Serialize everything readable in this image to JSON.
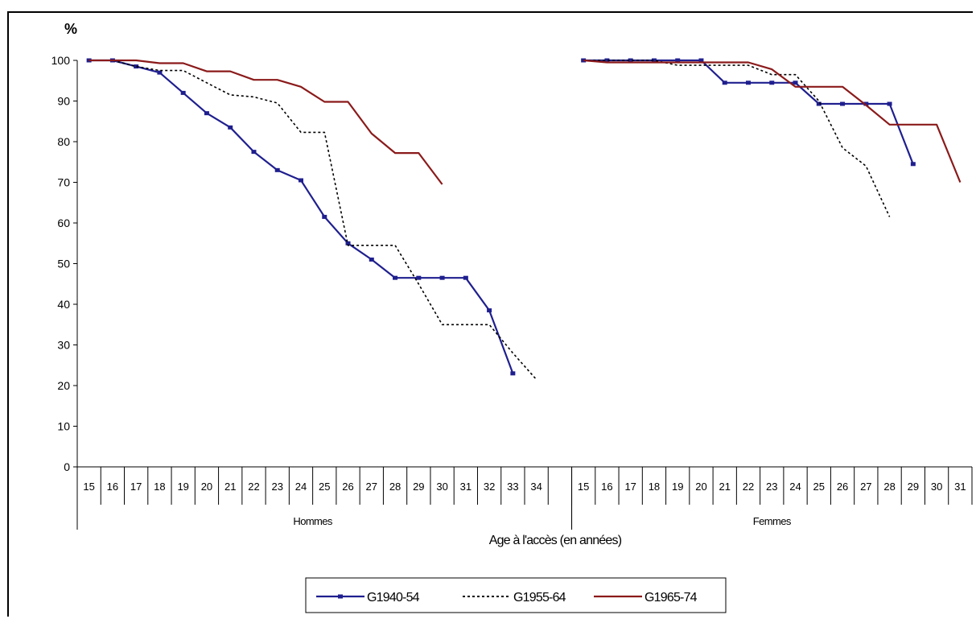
{
  "chart_data": {
    "type": "line",
    "ylabel": "%",
    "xlabel": "Age à l'accès (en années)",
    "ylim": [
      0,
      100
    ],
    "yticks": [
      0,
      10,
      20,
      30,
      40,
      50,
      60,
      70,
      80,
      90,
      100
    ],
    "legend_position": "bottom",
    "groups": [
      {
        "label": "Hommes",
        "categories": [
          "15",
          "16",
          "17",
          "18",
          "19",
          "20",
          "21",
          "22",
          "23",
          "24",
          "25",
          "26",
          "27",
          "28",
          "29",
          "30",
          "31",
          "32",
          "33",
          "34"
        ]
      },
      {
        "label": "Femmes",
        "categories": [
          "15",
          "16",
          "17",
          "18",
          "19",
          "20",
          "21",
          "22",
          "23",
          "24",
          "25",
          "26",
          "27",
          "28",
          "29",
          "30",
          "31"
        ]
      }
    ],
    "series": [
      {
        "name": "G1940-54",
        "color": "#1f1f8f",
        "style": "solid-markers",
        "values": [
          [
            100,
            100,
            98.5,
            97,
            92,
            87,
            83.5,
            77.5,
            73,
            70.5,
            61.5,
            55,
            51,
            46.5,
            46.5,
            46.5,
            46.5,
            38.5,
            23,
            null
          ],
          [
            100,
            100,
            100,
            100,
            100,
            100,
            94.5,
            94.5,
            94.5,
            94.5,
            89.3,
            89.3,
            89.3,
            89.3,
            74.5,
            null,
            null
          ]
        ]
      },
      {
        "name": "G1955-64",
        "color": "#000000",
        "style": "dotted",
        "values": [
          [
            100,
            100,
            98.5,
            97.5,
            97.5,
            94.5,
            91.5,
            91,
            89.5,
            82.3,
            82.3,
            54.5,
            54.5,
            54.5,
            45,
            35,
            35,
            35,
            28,
            21.5
          ],
          [
            100,
            100,
            100,
            100,
            98.8,
            98.8,
            98.8,
            98.8,
            96.5,
            96.5,
            90,
            78.5,
            74,
            61.5,
            null,
            null,
            null
          ]
        ]
      },
      {
        "name": "G1965-74",
        "color": "#8b1a1a",
        "style": "solid",
        "values": [
          [
            100,
            100,
            100,
            99.3,
            99.3,
            97.3,
            97.3,
            95.2,
            95.2,
            93.5,
            89.8,
            89.8,
            82,
            77.2,
            77.2,
            69.5,
            null,
            null,
            null,
            null
          ],
          [
            100,
            99.5,
            99.5,
            99.5,
            99.5,
            99.5,
            99.5,
            99.5,
            97.8,
            93.5,
            93.5,
            93.5,
            89,
            84.2,
            84.2,
            84.2,
            70
          ]
        ]
      }
    ]
  }
}
